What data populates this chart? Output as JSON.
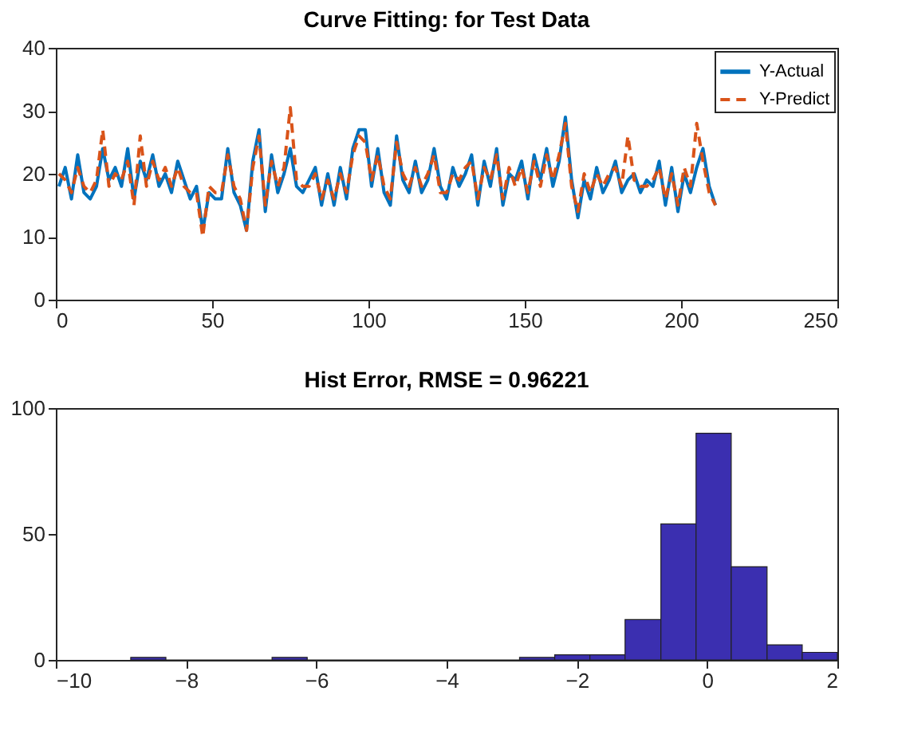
{
  "chart_data": [
    {
      "type": "line",
      "title": "Curve Fitting: for Test Data",
      "xlim": [
        0,
        250
      ],
      "xticks": [
        0,
        50,
        100,
        150,
        200,
        250
      ],
      "ylim": [
        0,
        40
      ],
      "yticks": [
        0,
        10,
        20,
        30,
        40
      ],
      "grid": false,
      "legend": "top right",
      "series": [
        {
          "name": "Y-Actual",
          "color": "#0072bd",
          "line_style": "solid",
          "x": [
            1,
            3,
            5,
            7,
            9,
            11,
            13,
            15,
            17,
            19,
            21,
            23,
            25,
            27,
            29,
            31,
            33,
            35,
            37,
            39,
            41,
            43,
            45,
            47,
            49,
            51,
            53,
            55,
            57,
            59,
            61,
            63,
            65,
            67,
            69,
            71,
            73,
            75,
            77,
            79,
            81,
            83,
            85,
            87,
            89,
            91,
            93,
            95,
            97,
            99,
            101,
            103,
            105,
            107,
            109,
            111,
            113,
            115,
            117,
            119,
            121,
            123,
            125,
            127,
            129,
            131,
            133,
            135,
            137,
            139,
            141,
            143,
            145,
            147,
            149,
            151,
            153,
            155,
            157,
            159,
            161,
            163,
            165,
            167,
            169,
            171,
            173,
            175,
            177,
            179,
            181,
            183,
            185,
            187,
            189,
            191,
            193,
            195,
            197,
            199,
            201,
            203,
            205,
            207,
            209,
            211
          ],
          "values": [
            18,
            21,
            16,
            23,
            17,
            16,
            18,
            24,
            19,
            21,
            18,
            24,
            16,
            22,
            19,
            23,
            18,
            20,
            17,
            22,
            19,
            16,
            18,
            11,
            17,
            16,
            16,
            24,
            17,
            15,
            11,
            22,
            27,
            14,
            23,
            17,
            20,
            24,
            18,
            17,
            19,
            21,
            15,
            20,
            15,
            21,
            16,
            24,
            27,
            27,
            18,
            24,
            17,
            15,
            26,
            19,
            17,
            22,
            17,
            19,
            24,
            18,
            16,
            21,
            18,
            20,
            23,
            15,
            22,
            18,
            24,
            15,
            20,
            19,
            22,
            16,
            23,
            19,
            24,
            18,
            22,
            29,
            19,
            13,
            19,
            16,
            21,
            17,
            19,
            22,
            17,
            19,
            20,
            17,
            19,
            18,
            22,
            15,
            21,
            14,
            20,
            17,
            21,
            24,
            18,
            15
          ]
        },
        {
          "name": "Y-Predict",
          "color": "#d95319",
          "line_style": "dashed",
          "x": [
            1,
            3,
            5,
            7,
            9,
            11,
            13,
            15,
            17,
            19,
            21,
            23,
            25,
            27,
            29,
            31,
            33,
            35,
            37,
            39,
            41,
            43,
            45,
            47,
            49,
            51,
            53,
            55,
            57,
            59,
            61,
            63,
            65,
            67,
            69,
            71,
            73,
            75,
            77,
            79,
            81,
            83,
            85,
            87,
            89,
            91,
            93,
            95,
            97,
            99,
            101,
            103,
            105,
            107,
            109,
            111,
            113,
            115,
            117,
            119,
            121,
            123,
            125,
            127,
            129,
            131,
            133,
            135,
            137,
            139,
            141,
            143,
            145,
            147,
            149,
            151,
            153,
            155,
            157,
            159,
            161,
            163,
            165,
            167,
            169,
            171,
            173,
            175,
            177,
            179,
            181,
            183,
            185,
            187,
            189,
            191,
            193,
            195,
            197,
            199,
            201,
            203,
            205,
            207,
            209,
            211
          ],
          "values": [
            20,
            19,
            17,
            21,
            18,
            17,
            19,
            27,
            18,
            20,
            19,
            22,
            15,
            26,
            18,
            22,
            19,
            21,
            18,
            21,
            18,
            17,
            17,
            10,
            18,
            17,
            17,
            23,
            18,
            16,
            11,
            21,
            26,
            15,
            22,
            18,
            21,
            30.5,
            19,
            18,
            18,
            20,
            16,
            19,
            16,
            20,
            17,
            23,
            26,
            25,
            19,
            23,
            18,
            16,
            25,
            20,
            18,
            21,
            18,
            20,
            23,
            17,
            17,
            20,
            19,
            21,
            22,
            16,
            21,
            19,
            23,
            16,
            21,
            18,
            21,
            17,
            22,
            18,
            23,
            19,
            23,
            28,
            18,
            14,
            20,
            17,
            20,
            18,
            20,
            21,
            18,
            26,
            19,
            18,
            18,
            19,
            21,
            16,
            20,
            15,
            21,
            18,
            28,
            22,
            17,
            15
          ]
        }
      ]
    },
    {
      "type": "histogram",
      "title": "Hist Error, RMSE = 0.96221",
      "color": "#3b2fb0",
      "xlim": [
        -10,
        2
      ],
      "xticks": [
        -10,
        -8,
        -6,
        -4,
        -2,
        0,
        2
      ],
      "ylim": [
        0,
        100
      ],
      "yticks": [
        0,
        50,
        100
      ],
      "grid": false,
      "bins": [
        -8.85,
        -8.31,
        -6.68,
        -6.14,
        -2.88,
        -2.34,
        -1.8,
        -1.26,
        -0.71,
        -0.17,
        0.37,
        0.92,
        1.46,
        2.0
      ],
      "values": [
        1,
        0,
        1,
        0,
        1,
        2,
        2,
        16,
        54,
        90,
        37,
        6,
        3
      ]
    }
  ]
}
